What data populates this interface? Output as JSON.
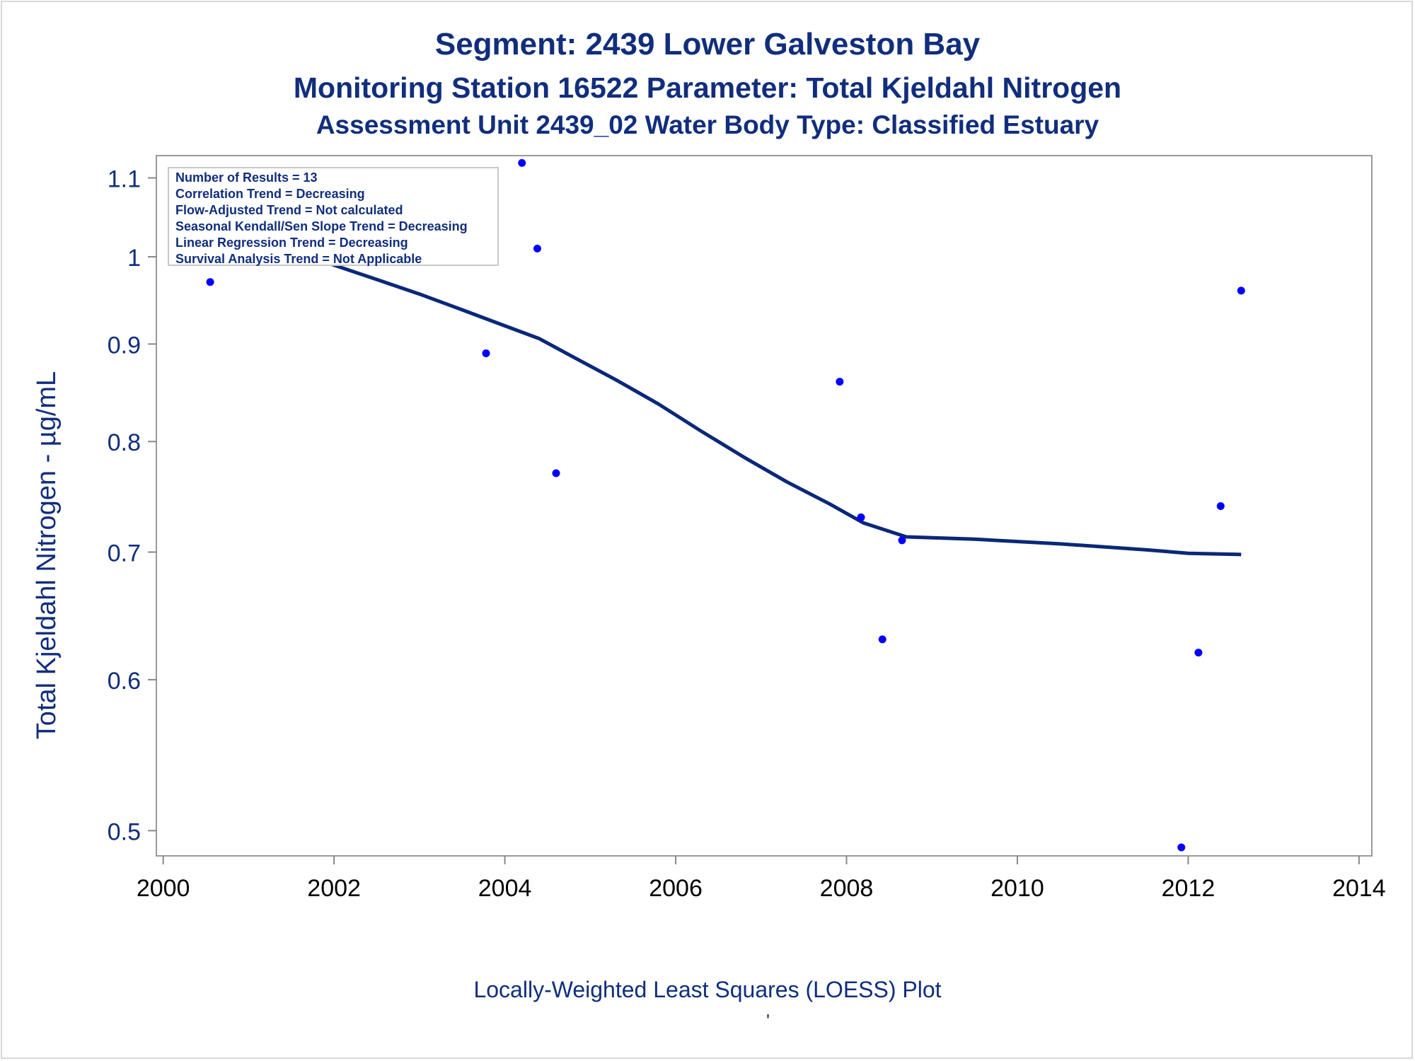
{
  "titles": {
    "line1": "Segment: 2439  Lower Galveston Bay",
    "line2": "Monitoring Station 16522 Parameter: Total Kjeldahl Nitrogen",
    "line3": "Assessment Unit 2439_02   Water Body Type: Classified Estuary"
  },
  "footnote": "Locally-Weighted Least Squares (LOESS) Plot",
  "footnote_mark": "'",
  "stats_box": [
    "Number of Results = 13",
    "Correlation Trend = Decreasing",
    "Flow-Adjusted Trend = Not calculated",
    "Seasonal Kendall/Sen Slope Trend = Decreasing",
    "Linear Regression Trend = Decreasing",
    "Survival Analysis Trend = Not Applicable"
  ],
  "colors": {
    "text": "#112e7d",
    "points": "#0000ff",
    "loess_line": "#0a2878",
    "axis": "#888888"
  },
  "chart_data": {
    "type": "scatter",
    "ylabel": "Total Kjeldahl Nitrogen -  µg/mL",
    "xlabel": "",
    "x_ticks": [
      2000,
      2002,
      2004,
      2006,
      2008,
      2010,
      2012,
      2014
    ],
    "y_ticks": [
      0.5,
      0.6,
      0.7,
      0.8,
      0.9,
      1,
      1.1
    ],
    "y_tick_labels": [
      "0.5",
      "0.6",
      "0.7",
      "0.8",
      "0.9",
      "1",
      "1.1"
    ],
    "xlim": [
      1999.92,
      2014.15
    ],
    "ylim": [
      0.485,
      1.13
    ],
    "yscale": "log",
    "grid": false,
    "legend": "top-left",
    "points": [
      {
        "x": 2000.55,
        "y": 0.97
      },
      {
        "x": 2003.78,
        "y": 0.89
      },
      {
        "x": 2004.2,
        "y": 1.12
      },
      {
        "x": 2004.38,
        "y": 1.01
      },
      {
        "x": 2004.6,
        "y": 0.77
      },
      {
        "x": 2007.92,
        "y": 0.86
      },
      {
        "x": 2008.17,
        "y": 0.73
      },
      {
        "x": 2008.42,
        "y": 0.63
      },
      {
        "x": 2008.65,
        "y": 0.71
      },
      {
        "x": 2011.92,
        "y": 0.49
      },
      {
        "x": 2012.12,
        "y": 0.62
      },
      {
        "x": 2012.38,
        "y": 0.74
      },
      {
        "x": 2012.62,
        "y": 0.96
      }
    ],
    "loess": [
      {
        "x": 2000.55,
        "y": 1.04
      },
      {
        "x": 2001.0,
        "y": 1.025
      },
      {
        "x": 2001.5,
        "y": 1.007
      },
      {
        "x": 2002.0,
        "y": 0.99
      },
      {
        "x": 2002.5,
        "y": 0.973
      },
      {
        "x": 2003.0,
        "y": 0.956
      },
      {
        "x": 2003.5,
        "y": 0.938
      },
      {
        "x": 2004.0,
        "y": 0.92
      },
      {
        "x": 2004.4,
        "y": 0.906
      },
      {
        "x": 2004.8,
        "y": 0.886
      },
      {
        "x": 2005.3,
        "y": 0.862
      },
      {
        "x": 2005.8,
        "y": 0.837
      },
      {
        "x": 2006.3,
        "y": 0.81
      },
      {
        "x": 2006.8,
        "y": 0.785
      },
      {
        "x": 2007.3,
        "y": 0.762
      },
      {
        "x": 2007.8,
        "y": 0.742
      },
      {
        "x": 2008.2,
        "y": 0.725
      },
      {
        "x": 2008.7,
        "y": 0.713
      },
      {
        "x": 2009.5,
        "y": 0.711
      },
      {
        "x": 2010.5,
        "y": 0.707
      },
      {
        "x": 2011.5,
        "y": 0.702
      },
      {
        "x": 2012.0,
        "y": 0.699
      },
      {
        "x": 2012.62,
        "y": 0.698
      }
    ]
  }
}
